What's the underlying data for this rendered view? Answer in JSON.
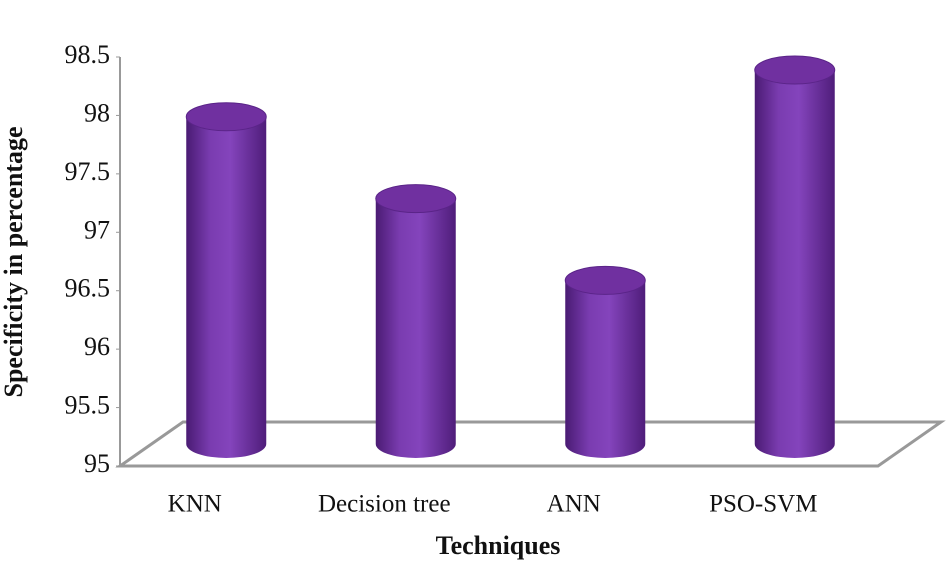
{
  "chart_data": {
    "type": "bar",
    "style": "cylinder-3d",
    "x_label": "Techniques",
    "y_label": "Specificity in percentage",
    "categories": [
      "KNN",
      "Decision tree",
      "ANN",
      "PSO-SVM"
    ],
    "values": [
      97.8,
      97.1,
      96.4,
      98.2
    ],
    "color": "#7030a0",
    "ylim": [
      95,
      98.5
    ],
    "yticks": [
      95,
      95.5,
      96,
      96.5,
      97,
      97.5,
      98,
      98.5
    ],
    "grid": false
  }
}
